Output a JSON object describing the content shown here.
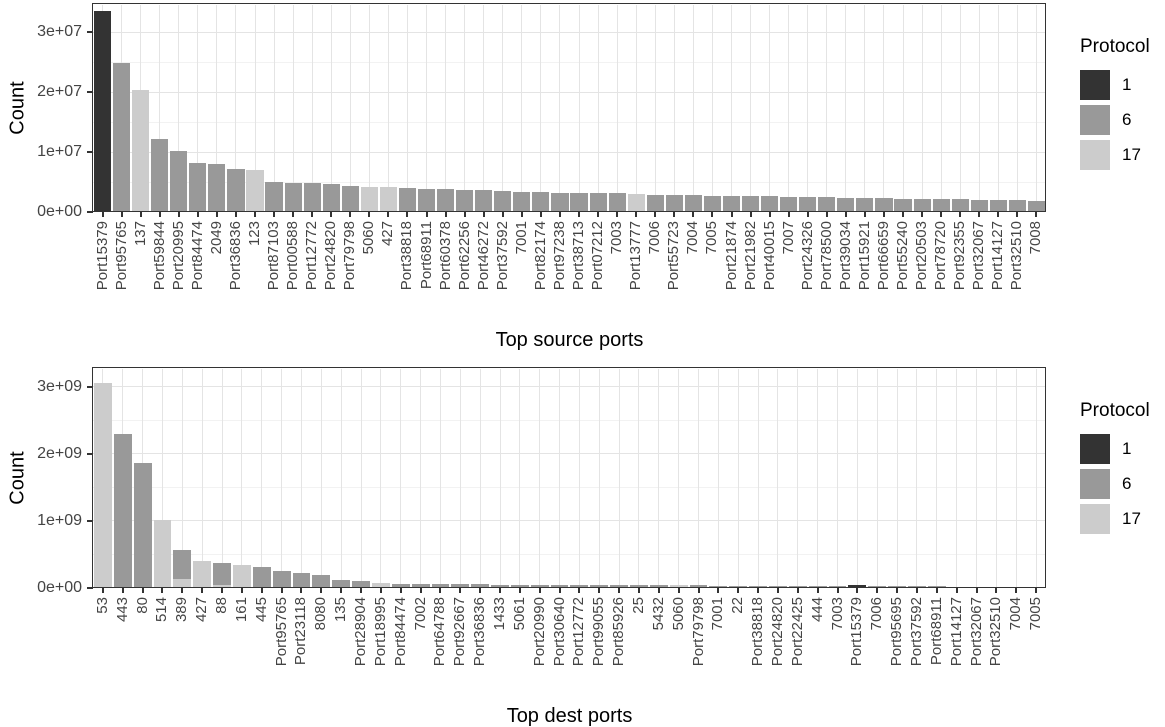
{
  "colors": {
    "protocol_1": "#333333",
    "protocol_6": "#999999",
    "protocol_17": "#cccccc",
    "grid_major": "#e4e4e4",
    "grid_minor": "#f2f2f2",
    "panel_border": "#333333",
    "axis_text": "#444444",
    "title_text": "#000000"
  },
  "chart_data": [
    {
      "type": "bar",
      "stacked": true,
      "orientation": "vertical",
      "xlabel": "Top source ports",
      "ylabel": "Count",
      "ylim": [
        0,
        34700000
      ],
      "unit": 10000000,
      "y_ticks": [
        "0e+00",
        "1e+07",
        "2e+07",
        "3e+07"
      ],
      "grid": true,
      "legend": {
        "title": "Protocol",
        "entries": [
          {
            "label": "1",
            "protocol": "1"
          },
          {
            "label": "6",
            "protocol": "6"
          },
          {
            "label": "17",
            "protocol": "17"
          }
        ],
        "position": "right"
      },
      "bars": [
        {
          "label": "Port15379",
          "segments": [
            {
              "protocol": "1",
              "value": 33500000
            }
          ]
        },
        {
          "label": "Port95765",
          "segments": [
            {
              "protocol": "6",
              "value": 24800000
            }
          ]
        },
        {
          "label": "137",
          "segments": [
            {
              "protocol": "17",
              "value": 20400000
            }
          ]
        },
        {
          "label": "Port59844",
          "segments": [
            {
              "protocol": "6",
              "value": 12200000
            }
          ]
        },
        {
          "label": "Port20995",
          "segments": [
            {
              "protocol": "6",
              "value": 10100000
            }
          ]
        },
        {
          "label": "Port84474",
          "segments": [
            {
              "protocol": "6",
              "value": 8100000
            }
          ]
        },
        {
          "label": "2049",
          "segments": [
            {
              "protocol": "6",
              "value": 8000000
            }
          ]
        },
        {
          "label": "Port36836",
          "segments": [
            {
              "protocol": "6",
              "value": 7100000
            }
          ]
        },
        {
          "label": "123",
          "segments": [
            {
              "protocol": "17",
              "value": 7000000
            }
          ]
        },
        {
          "label": "Port87103",
          "segments": [
            {
              "protocol": "6",
              "value": 5000000
            }
          ]
        },
        {
          "label": "Port00588",
          "segments": [
            {
              "protocol": "6",
              "value": 4900000
            }
          ]
        },
        {
          "label": "Port12772",
          "segments": [
            {
              "protocol": "6",
              "value": 4800000
            }
          ]
        },
        {
          "label": "Port24820",
          "segments": [
            {
              "protocol": "6",
              "value": 4700000
            }
          ]
        },
        {
          "label": "Port79798",
          "segments": [
            {
              "protocol": "6",
              "value": 4300000
            }
          ]
        },
        {
          "label": "5060",
          "segments": [
            {
              "protocol": "17",
              "value": 4200000
            }
          ]
        },
        {
          "label": "427",
          "segments": [
            {
              "protocol": "17",
              "value": 4100000
            }
          ]
        },
        {
          "label": "Port38818",
          "segments": [
            {
              "protocol": "6",
              "value": 4000000
            }
          ]
        },
        {
          "label": "Port68911",
          "segments": [
            {
              "protocol": "6",
              "value": 3900000
            }
          ]
        },
        {
          "label": "Port60378",
          "segments": [
            {
              "protocol": "6",
              "value": 3850000
            }
          ]
        },
        {
          "label": "Port62256",
          "segments": [
            {
              "protocol": "6",
              "value": 3700000
            }
          ]
        },
        {
          "label": "Port46272",
          "segments": [
            {
              "protocol": "6",
              "value": 3600000
            }
          ]
        },
        {
          "label": "Port37592",
          "segments": [
            {
              "protocol": "6",
              "value": 3500000
            }
          ]
        },
        {
          "label": "7001",
          "segments": [
            {
              "protocol": "6",
              "value": 3400000
            }
          ]
        },
        {
          "label": "Port82174",
          "segments": [
            {
              "protocol": "6",
              "value": 3300000
            }
          ]
        },
        {
          "label": "Port97238",
          "segments": [
            {
              "protocol": "6",
              "value": 3250000
            }
          ]
        },
        {
          "label": "Port38713",
          "segments": [
            {
              "protocol": "6",
              "value": 3200000
            }
          ]
        },
        {
          "label": "Port07212",
          "segments": [
            {
              "protocol": "6",
              "value": 3150000
            }
          ]
        },
        {
          "label": "7003",
          "segments": [
            {
              "protocol": "6",
              "value": 3100000
            }
          ]
        },
        {
          "label": "Port13777",
          "segments": [
            {
              "protocol": "17",
              "value": 3000000
            }
          ]
        },
        {
          "label": "7006",
          "segments": [
            {
              "protocol": "6",
              "value": 2900000
            }
          ]
        },
        {
          "label": "Port55723",
          "segments": [
            {
              "protocol": "6",
              "value": 2850000
            }
          ]
        },
        {
          "label": "7004",
          "segments": [
            {
              "protocol": "6",
              "value": 2800000
            }
          ]
        },
        {
          "label": "7005",
          "segments": [
            {
              "protocol": "6",
              "value": 2750000
            }
          ]
        },
        {
          "label": "Port21874",
          "segments": [
            {
              "protocol": "6",
              "value": 2700000
            }
          ]
        },
        {
          "label": "Port21982",
          "segments": [
            {
              "protocol": "6",
              "value": 2650000
            }
          ]
        },
        {
          "label": "Port40015",
          "segments": [
            {
              "protocol": "6",
              "value": 2600000
            }
          ]
        },
        {
          "label": "7007",
          "segments": [
            {
              "protocol": "6",
              "value": 2550000
            }
          ]
        },
        {
          "label": "Port24326",
          "segments": [
            {
              "protocol": "6",
              "value": 2500000
            }
          ]
        },
        {
          "label": "Port78500",
          "segments": [
            {
              "protocol": "6",
              "value": 2450000
            }
          ]
        },
        {
          "label": "Port39034",
          "segments": [
            {
              "protocol": "6",
              "value": 2400000
            }
          ]
        },
        {
          "label": "Port15921",
          "segments": [
            {
              "protocol": "6",
              "value": 2350000
            }
          ]
        },
        {
          "label": "Port66659",
          "segments": [
            {
              "protocol": "6",
              "value": 2300000
            }
          ]
        },
        {
          "label": "Port55240",
          "segments": [
            {
              "protocol": "6",
              "value": 2250000
            }
          ]
        },
        {
          "label": "Port20503",
          "segments": [
            {
              "protocol": "6",
              "value": 2200000
            }
          ]
        },
        {
          "label": "Port78720",
          "segments": [
            {
              "protocol": "6",
              "value": 2150000
            }
          ]
        },
        {
          "label": "Port92355",
          "segments": [
            {
              "protocol": "6",
              "value": 2100000
            }
          ]
        },
        {
          "label": "Port32067",
          "segments": [
            {
              "protocol": "6",
              "value": 2050000
            }
          ]
        },
        {
          "label": "Port14127",
          "segments": [
            {
              "protocol": "6",
              "value": 2000000
            }
          ]
        },
        {
          "label": "Port32510",
          "segments": [
            {
              "protocol": "6",
              "value": 1950000
            }
          ]
        },
        {
          "label": "7008",
          "segments": [
            {
              "protocol": "6",
              "value": 1900000
            }
          ]
        }
      ]
    },
    {
      "type": "bar",
      "stacked": true,
      "orientation": "vertical",
      "xlabel": "Top dest ports",
      "ylabel": "Count",
      "ylim": [
        0,
        3280000000
      ],
      "unit": 1000000000,
      "y_ticks": [
        "0e+00",
        "1e+09",
        "2e+09",
        "3e+09"
      ],
      "grid": true,
      "legend": {
        "title": "Protocol",
        "entries": [
          {
            "label": "1",
            "protocol": "1"
          },
          {
            "label": "6",
            "protocol": "6"
          },
          {
            "label": "17",
            "protocol": "17"
          }
        ],
        "position": "right"
      },
      "bars": [
        {
          "label": "53",
          "segments": [
            {
              "protocol": "17",
              "value": 3050000000
            }
          ]
        },
        {
          "label": "443",
          "segments": [
            {
              "protocol": "6",
              "value": 2300000000
            }
          ]
        },
        {
          "label": "80",
          "segments": [
            {
              "protocol": "6",
              "value": 1870000000
            }
          ]
        },
        {
          "label": "514",
          "segments": [
            {
              "protocol": "17",
              "value": 1020000000
            }
          ]
        },
        {
          "label": "389",
          "segments": [
            {
              "protocol": "17",
              "value": 140000000
            },
            {
              "protocol": "6",
              "value": 420000000
            }
          ]
        },
        {
          "label": "427",
          "segments": [
            {
              "protocol": "17",
              "value": 400000000
            }
          ]
        },
        {
          "label": "88",
          "segments": [
            {
              "protocol": "17",
              "value": 40000000
            },
            {
              "protocol": "6",
              "value": 340000000
            }
          ]
        },
        {
          "label": "161",
          "segments": [
            {
              "protocol": "17",
              "value": 350000000
            }
          ]
        },
        {
          "label": "445",
          "segments": [
            {
              "protocol": "6",
              "value": 310000000
            }
          ]
        },
        {
          "label": "Port95765",
          "segments": [
            {
              "protocol": "6",
              "value": 250000000
            }
          ]
        },
        {
          "label": "Port23118",
          "segments": [
            {
              "protocol": "6",
              "value": 220000000
            }
          ]
        },
        {
          "label": "8080",
          "segments": [
            {
              "protocol": "6",
              "value": 200000000
            }
          ]
        },
        {
          "label": "135",
          "segments": [
            {
              "protocol": "6",
              "value": 115000000
            }
          ]
        },
        {
          "label": "Port28904",
          "segments": [
            {
              "protocol": "6",
              "value": 105000000
            }
          ]
        },
        {
          "label": "Port18995",
          "segments": [
            {
              "protocol": "17",
              "value": 75000000
            }
          ]
        },
        {
          "label": "Port84474",
          "segments": [
            {
              "protocol": "6",
              "value": 62000000
            }
          ]
        },
        {
          "label": "7002",
          "segments": [
            {
              "protocol": "6",
              "value": 60000000
            }
          ]
        },
        {
          "label": "Port64788",
          "segments": [
            {
              "protocol": "6",
              "value": 58000000
            }
          ]
        },
        {
          "label": "Port92667",
          "segments": [
            {
              "protocol": "6",
              "value": 56000000
            }
          ]
        },
        {
          "label": "Port36836",
          "segments": [
            {
              "protocol": "6",
              "value": 54000000
            }
          ]
        },
        {
          "label": "1433",
          "segments": [
            {
              "protocol": "6",
              "value": 52000000
            }
          ]
        },
        {
          "label": "5061",
          "segments": [
            {
              "protocol": "6",
              "value": 50000000
            }
          ]
        },
        {
          "label": "Port20990",
          "segments": [
            {
              "protocol": "6",
              "value": 48000000
            }
          ]
        },
        {
          "label": "Port30640",
          "segments": [
            {
              "protocol": "6",
              "value": 46000000
            }
          ]
        },
        {
          "label": "Port12772",
          "segments": [
            {
              "protocol": "6",
              "value": 44000000
            }
          ]
        },
        {
          "label": "Port99055",
          "segments": [
            {
              "protocol": "6",
              "value": 43000000
            }
          ]
        },
        {
          "label": "Port85926",
          "segments": [
            {
              "protocol": "6",
              "value": 42000000
            }
          ]
        },
        {
          "label": "25",
          "segments": [
            {
              "protocol": "6",
              "value": 41000000
            }
          ]
        },
        {
          "label": "5432",
          "segments": [
            {
              "protocol": "6",
              "value": 40000000
            }
          ]
        },
        {
          "label": "5060",
          "segments": [
            {
              "protocol": "17",
              "value": 39000000
            }
          ]
        },
        {
          "label": "Port79798",
          "segments": [
            {
              "protocol": "6",
              "value": 38000000
            }
          ]
        },
        {
          "label": "7001",
          "segments": [
            {
              "protocol": "6",
              "value": 37000000
            }
          ]
        },
        {
          "label": "22",
          "segments": [
            {
              "protocol": "6",
              "value": 35000000
            }
          ]
        },
        {
          "label": "Port38818",
          "segments": [
            {
              "protocol": "6",
              "value": 34000000
            }
          ]
        },
        {
          "label": "Port24820",
          "segments": [
            {
              "protocol": "6",
              "value": 33000000
            }
          ]
        },
        {
          "label": "Port22425",
          "segments": [
            {
              "protocol": "6",
              "value": 32000000
            }
          ]
        },
        {
          "label": "444",
          "segments": [
            {
              "protocol": "6",
              "value": 30000000
            }
          ]
        },
        {
          "label": "7003",
          "segments": [
            {
              "protocol": "6",
              "value": 28000000
            }
          ]
        },
        {
          "label": "Port15379",
          "segments": [
            {
              "protocol": "1",
              "value": 40000000
            }
          ]
        },
        {
          "label": "7006",
          "segments": [
            {
              "protocol": "6",
              "value": 27000000
            }
          ]
        },
        {
          "label": "Port95695",
          "segments": [
            {
              "protocol": "6",
              "value": 26000000
            }
          ]
        },
        {
          "label": "Port37592",
          "segments": [
            {
              "protocol": "6",
              "value": 25000000
            }
          ]
        },
        {
          "label": "Port68911",
          "segments": [
            {
              "protocol": "6",
              "value": 23000000
            }
          ]
        },
        {
          "label": "Port14127",
          "segments": [
            {
              "protocol": "6",
              "value": 22000000
            }
          ]
        },
        {
          "label": "Port32067",
          "segments": [
            {
              "protocol": "6",
              "value": 21000000
            }
          ]
        },
        {
          "label": "Port32510",
          "segments": [
            {
              "protocol": "6",
              "value": 20000000
            }
          ]
        },
        {
          "label": "7004",
          "segments": [
            {
              "protocol": "6",
              "value": 18000000
            }
          ]
        },
        {
          "label": "7005",
          "segments": [
            {
              "protocol": "6",
              "value": 15000000
            }
          ]
        }
      ]
    }
  ]
}
